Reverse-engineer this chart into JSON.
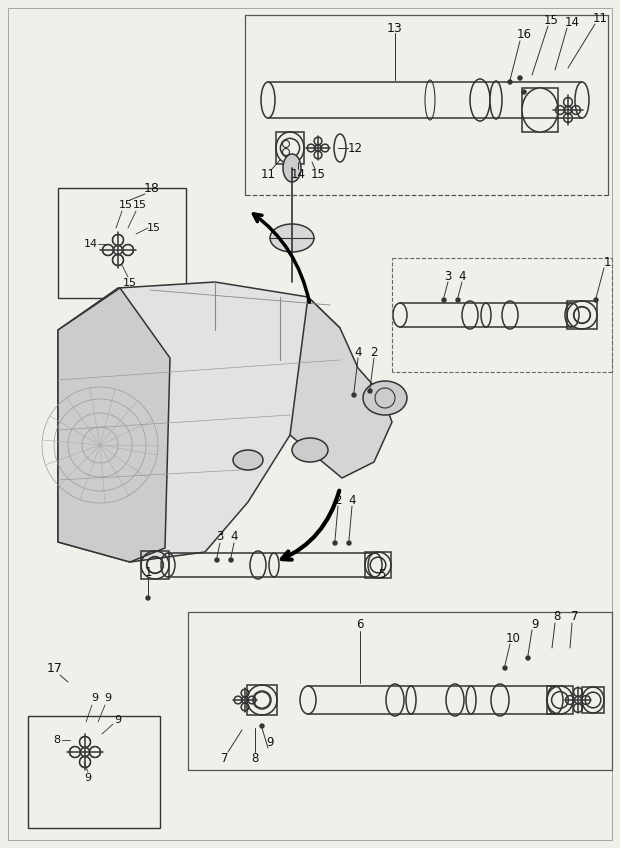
{
  "bg_color": "#f0f0eb",
  "line_color": "#333333",
  "fig_width": 6.2,
  "fig_height": 8.48,
  "dpi": 100
}
